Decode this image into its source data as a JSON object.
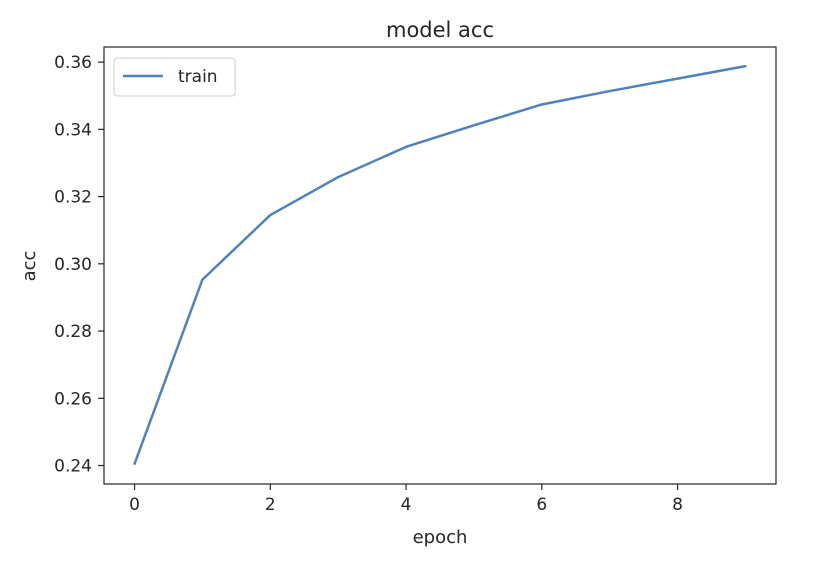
{
  "chart_data": {
    "type": "line",
    "title": "model acc",
    "xlabel": "epoch",
    "ylabel": "acc",
    "xlim": [
      -0.45,
      9.45
    ],
    "ylim": [
      0.2345,
      0.3645
    ],
    "xticks": [
      0,
      2,
      4,
      6,
      8
    ],
    "xtick_labels": [
      "0",
      "2",
      "4",
      "6",
      "8"
    ],
    "yticks": [
      0.24,
      0.26,
      0.28,
      0.3,
      0.32,
      0.34,
      0.36
    ],
    "ytick_labels": [
      "0.24",
      "0.26",
      "0.28",
      "0.30",
      "0.32",
      "0.34",
      "0.36"
    ],
    "grid": false,
    "legend": {
      "position": "top-left"
    },
    "series": [
      {
        "name": "train",
        "color": "#4f81bd",
        "x": [
          0,
          1,
          2,
          3,
          4,
          5,
          6,
          7,
          8,
          9
        ],
        "values": [
          0.2405,
          0.2953,
          0.3145,
          0.3258,
          0.3348,
          0.3412,
          0.3474,
          0.3514,
          0.3551,
          0.3588
        ]
      }
    ]
  }
}
